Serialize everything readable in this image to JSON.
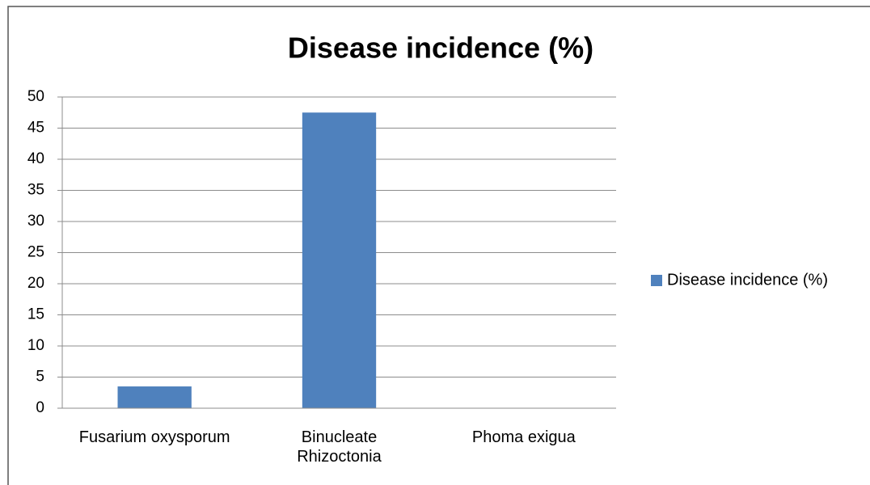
{
  "chart_data": {
    "type": "bar",
    "title": "Disease incidence (%)",
    "categories": [
      "Fusarium oxysporum",
      "Binucleate Rhizoctonia",
      "Phoma exigua"
    ],
    "series": [
      {
        "name": "Disease incidence (%)",
        "color": "#4f81bd",
        "values": [
          3.5,
          47.5,
          0
        ]
      }
    ],
    "ylim": [
      0,
      50
    ],
    "yticks": [
      0,
      5,
      10,
      15,
      20,
      25,
      30,
      35,
      40,
      45,
      50
    ],
    "grid": true,
    "legend": "right"
  }
}
